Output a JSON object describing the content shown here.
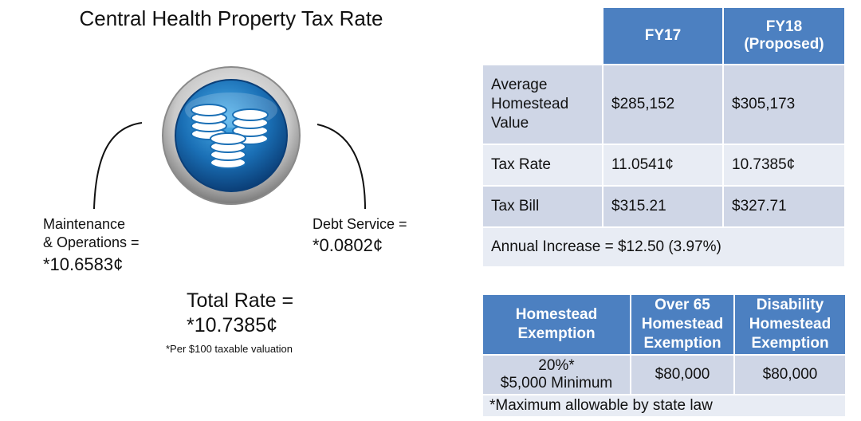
{
  "title": "Central Health Property Tax Rate",
  "graphic": {
    "icon": "coin-stack-icon",
    "accent": "#1a6fb5"
  },
  "components": {
    "mo_label": "Maintenance\n& Operations =",
    "mo_value": "*10.6583¢",
    "debt_label": "Debt Service =",
    "debt_value": "*0.0802¢"
  },
  "total": {
    "label": "Total Rate =",
    "value": "*10.7385¢",
    "footnote": "*Per $100 taxable valuation"
  },
  "rate_table": {
    "headers": [
      "FY17",
      "FY18\n(Proposed)"
    ],
    "rows": [
      {
        "label": "Average\nHomestead\nValue",
        "fy17": "$285,152",
        "fy18": "$305,173"
      },
      {
        "label": "Tax Rate",
        "fy17": "11.0541¢",
        "fy18": "10.7385¢"
      },
      {
        "label": "Tax Bill",
        "fy17": "$315.21",
        "fy18": "$327.71"
      }
    ],
    "annual_increase": "Annual Increase = $12.50 (3.97%)"
  },
  "exemption_table": {
    "headers": [
      "Homestead\nExemption",
      "Over 65\nHomestead\nExemption",
      "Disability\nHomestead\nExemption"
    ],
    "values": [
      "20%*\n$5,000 Minimum",
      "$80,000",
      "$80,000"
    ],
    "note": "*Maximum allowable by state law"
  },
  "colors": {
    "header_blue": "#4c80c1",
    "row_dark": "#cfd6e6",
    "row_light": "#e8ecf4"
  }
}
